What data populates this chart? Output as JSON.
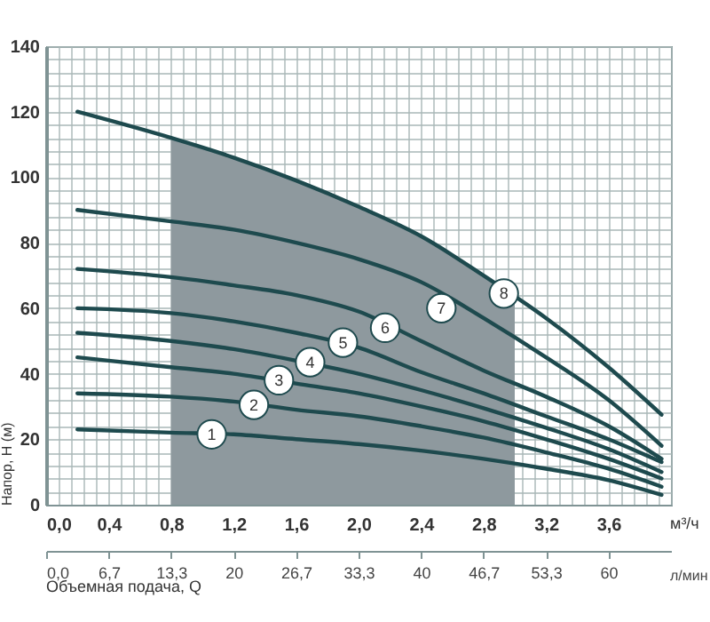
{
  "chart_data": {
    "type": "line",
    "ylabel": "Напор, H (м)",
    "xlabel": "м³/ч",
    "x2label": "л/мин",
    "x": [
      0.2,
      0.8,
      1.2,
      1.6,
      2.0,
      2.4,
      2.8,
      3.2,
      3.6,
      3.94
    ],
    "series": [
      {
        "type": "area",
        "color": "#8e999e",
        "x": [
          0.8,
          1.2,
          1.6,
          2.0,
          2.4,
          2.8,
          3.0
        ],
        "values": [
          112,
          106,
          99,
          91,
          82,
          70,
          64
        ]
      },
      {
        "color": "#1e4a4e",
        "values": [
          23,
          22,
          21.5,
          20,
          18.5,
          16.5,
          14,
          11,
          7.5,
          3
        ]
      },
      {
        "color": "#1e4a4e",
        "values": [
          34,
          33,
          31.5,
          29,
          27,
          24,
          20.5,
          16,
          11,
          5.5
        ]
      },
      {
        "color": "#1e4a4e",
        "values": [
          45,
          42,
          40,
          37,
          34,
          30,
          25.5,
          20,
          14,
          8
        ]
      },
      {
        "color": "#1e4a4e",
        "values": [
          52.5,
          50,
          47.5,
          44,
          40,
          35,
          29.5,
          23.5,
          17,
          10
        ]
      },
      {
        "color": "#1e4a4e",
        "values": [
          60,
          58.5,
          56,
          52.5,
          48,
          40.5,
          34,
          27,
          20,
          13
        ]
      },
      {
        "color": "#1e4a4e",
        "values": [
          72,
          69.5,
          67,
          64,
          59,
          50,
          41,
          33,
          24,
          14
        ]
      },
      {
        "color": "#1e4a4e",
        "values": [
          90,
          86.5,
          84,
          80,
          75,
          68,
          57,
          45,
          32,
          18
        ]
      },
      {
        "color": "#1e4a4e",
        "values": [
          120,
          112,
          106,
          99,
          91,
          82,
          70,
          57,
          42,
          27.5
        ]
      }
    ],
    "xlim": [
      0,
      4
    ],
    "ylim": [
      0,
      140
    ],
    "xticks": [
      {
        "value": 0,
        "label": "0,0"
      },
      {
        "value": 0.4,
        "label": "0,4"
      },
      {
        "value": 0.8,
        "label": "0,8"
      },
      {
        "value": 1.2,
        "label": "1,2"
      },
      {
        "value": 1.6,
        "label": "1,6"
      },
      {
        "value": 2.0,
        "label": "2,0"
      },
      {
        "value": 2.4,
        "label": "2,4"
      },
      {
        "value": 2.8,
        "label": "2,8"
      },
      {
        "value": 3.2,
        "label": "3,2"
      },
      {
        "value": 3.6,
        "label": "3,6"
      }
    ],
    "yticks": [
      0,
      20,
      40,
      60,
      80,
      100,
      120,
      140
    ],
    "x2lim": [
      0,
      66.67
    ],
    "x2ticks": [
      {
        "value": 0,
        "label": "0,0"
      },
      {
        "value": 6.67,
        "label": "6,7"
      },
      {
        "value": 13.33,
        "label": "13,3"
      },
      {
        "value": 20,
        "label": "20"
      },
      {
        "value": 26.67,
        "label": "26,7"
      },
      {
        "value": 33.33,
        "label": "33,3"
      },
      {
        "value": 40,
        "label": "40"
      },
      {
        "value": 46.67,
        "label": "46,7"
      },
      {
        "value": 53.33,
        "label": "53,3"
      },
      {
        "value": 60,
        "label": "60"
      }
    ],
    "annotations": [
      {
        "text": "1",
        "x": 1.06,
        "y": 21.5
      },
      {
        "text": "2",
        "x": 1.33,
        "y": 30.5
      },
      {
        "text": "3",
        "x": 1.49,
        "y": 38
      },
      {
        "text": "4",
        "x": 1.69,
        "y": 43.5
      },
      {
        "text": "5",
        "x": 1.9,
        "y": 49.5
      },
      {
        "text": "6",
        "x": 2.17,
        "y": 54
      },
      {
        "text": "7",
        "x": 2.53,
        "y": 60
      },
      {
        "text": "8",
        "x": 2.93,
        "y": 64.5
      },
      "Объемная подача, Q"
    ],
    "grid": true,
    "marker": "none",
    "line_style": "solid"
  }
}
